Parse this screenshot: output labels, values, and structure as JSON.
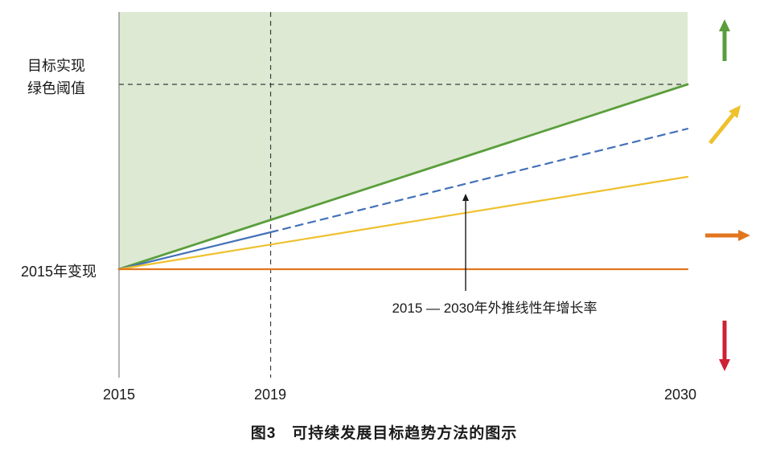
{
  "figure": {
    "caption": "图3　可持续发展目标趋势方法的图示"
  },
  "labels": {
    "threshold_line1": "目标实现",
    "threshold_line2": "绿色阈值",
    "baseline": "2015年变现",
    "annotation": "2015 — 2030年外推线性年增长率"
  },
  "axis": {
    "x_ticks": [
      "2015",
      "2019",
      "2030"
    ]
  },
  "colors": {
    "green": "#5a9e3c",
    "green_fill": "#dde9d2",
    "blue": "#4472b8",
    "yellow": "#eec12d",
    "orange": "#e2761f",
    "red": "#cd2135",
    "dash": "#3c3c3c",
    "axis": "#6b6b6b",
    "text": "#1a1a1a"
  },
  "chart_data": {
    "type": "line",
    "title": "图3　可持续发展目标趋势方法的图示",
    "xlabel": "",
    "ylabel": "",
    "xlim": [
      2015,
      2030
    ],
    "ylim": [
      -0.6,
      1.4
    ],
    "x_ticks": [
      2015,
      2019,
      2030
    ],
    "y_reference_levels": {
      "baseline_2015_value": 0,
      "green_threshold_value": 1
    },
    "series": [
      {
        "name": "target-trajectory-green",
        "color_key": "green",
        "dash": false,
        "points": [
          [
            2015,
            0
          ],
          [
            2030,
            1
          ]
        ]
      },
      {
        "name": "extrapolated-linear-growth-observed",
        "color_key": "blue",
        "dash": false,
        "points": [
          [
            2015,
            0
          ],
          [
            2019,
            0.2
          ]
        ]
      },
      {
        "name": "extrapolated-linear-growth-projected",
        "color_key": "blue",
        "dash": true,
        "points": [
          [
            2019,
            0.2
          ],
          [
            2030,
            0.76
          ]
        ]
      },
      {
        "name": "moderate-growth-yellow",
        "color_key": "yellow",
        "dash": false,
        "points": [
          [
            2015,
            0
          ],
          [
            2030,
            0.5
          ]
        ]
      },
      {
        "name": "stagnation-orange",
        "color_key": "orange",
        "dash": false,
        "points": [
          [
            2015,
            0
          ],
          [
            2030,
            0
          ]
        ]
      }
    ],
    "reference_lines": [
      {
        "axis": "y",
        "value": 1,
        "style": "dashed"
      },
      {
        "axis": "x",
        "value": 2019,
        "style": "dashed"
      }
    ],
    "shaded_region": {
      "description": "zone above green target line up to plot top",
      "fill_key": "green_fill",
      "boundary_points": [
        [
          2015,
          0
        ],
        [
          2030,
          1
        ]
      ]
    },
    "legend_position": "none",
    "grid": false
  },
  "legend_arrows": [
    {
      "name": "up",
      "color_key": "green"
    },
    {
      "name": "up-right",
      "color_key": "yellow"
    },
    {
      "name": "right",
      "color_key": "orange"
    },
    {
      "name": "down",
      "color_key": "red"
    }
  ]
}
